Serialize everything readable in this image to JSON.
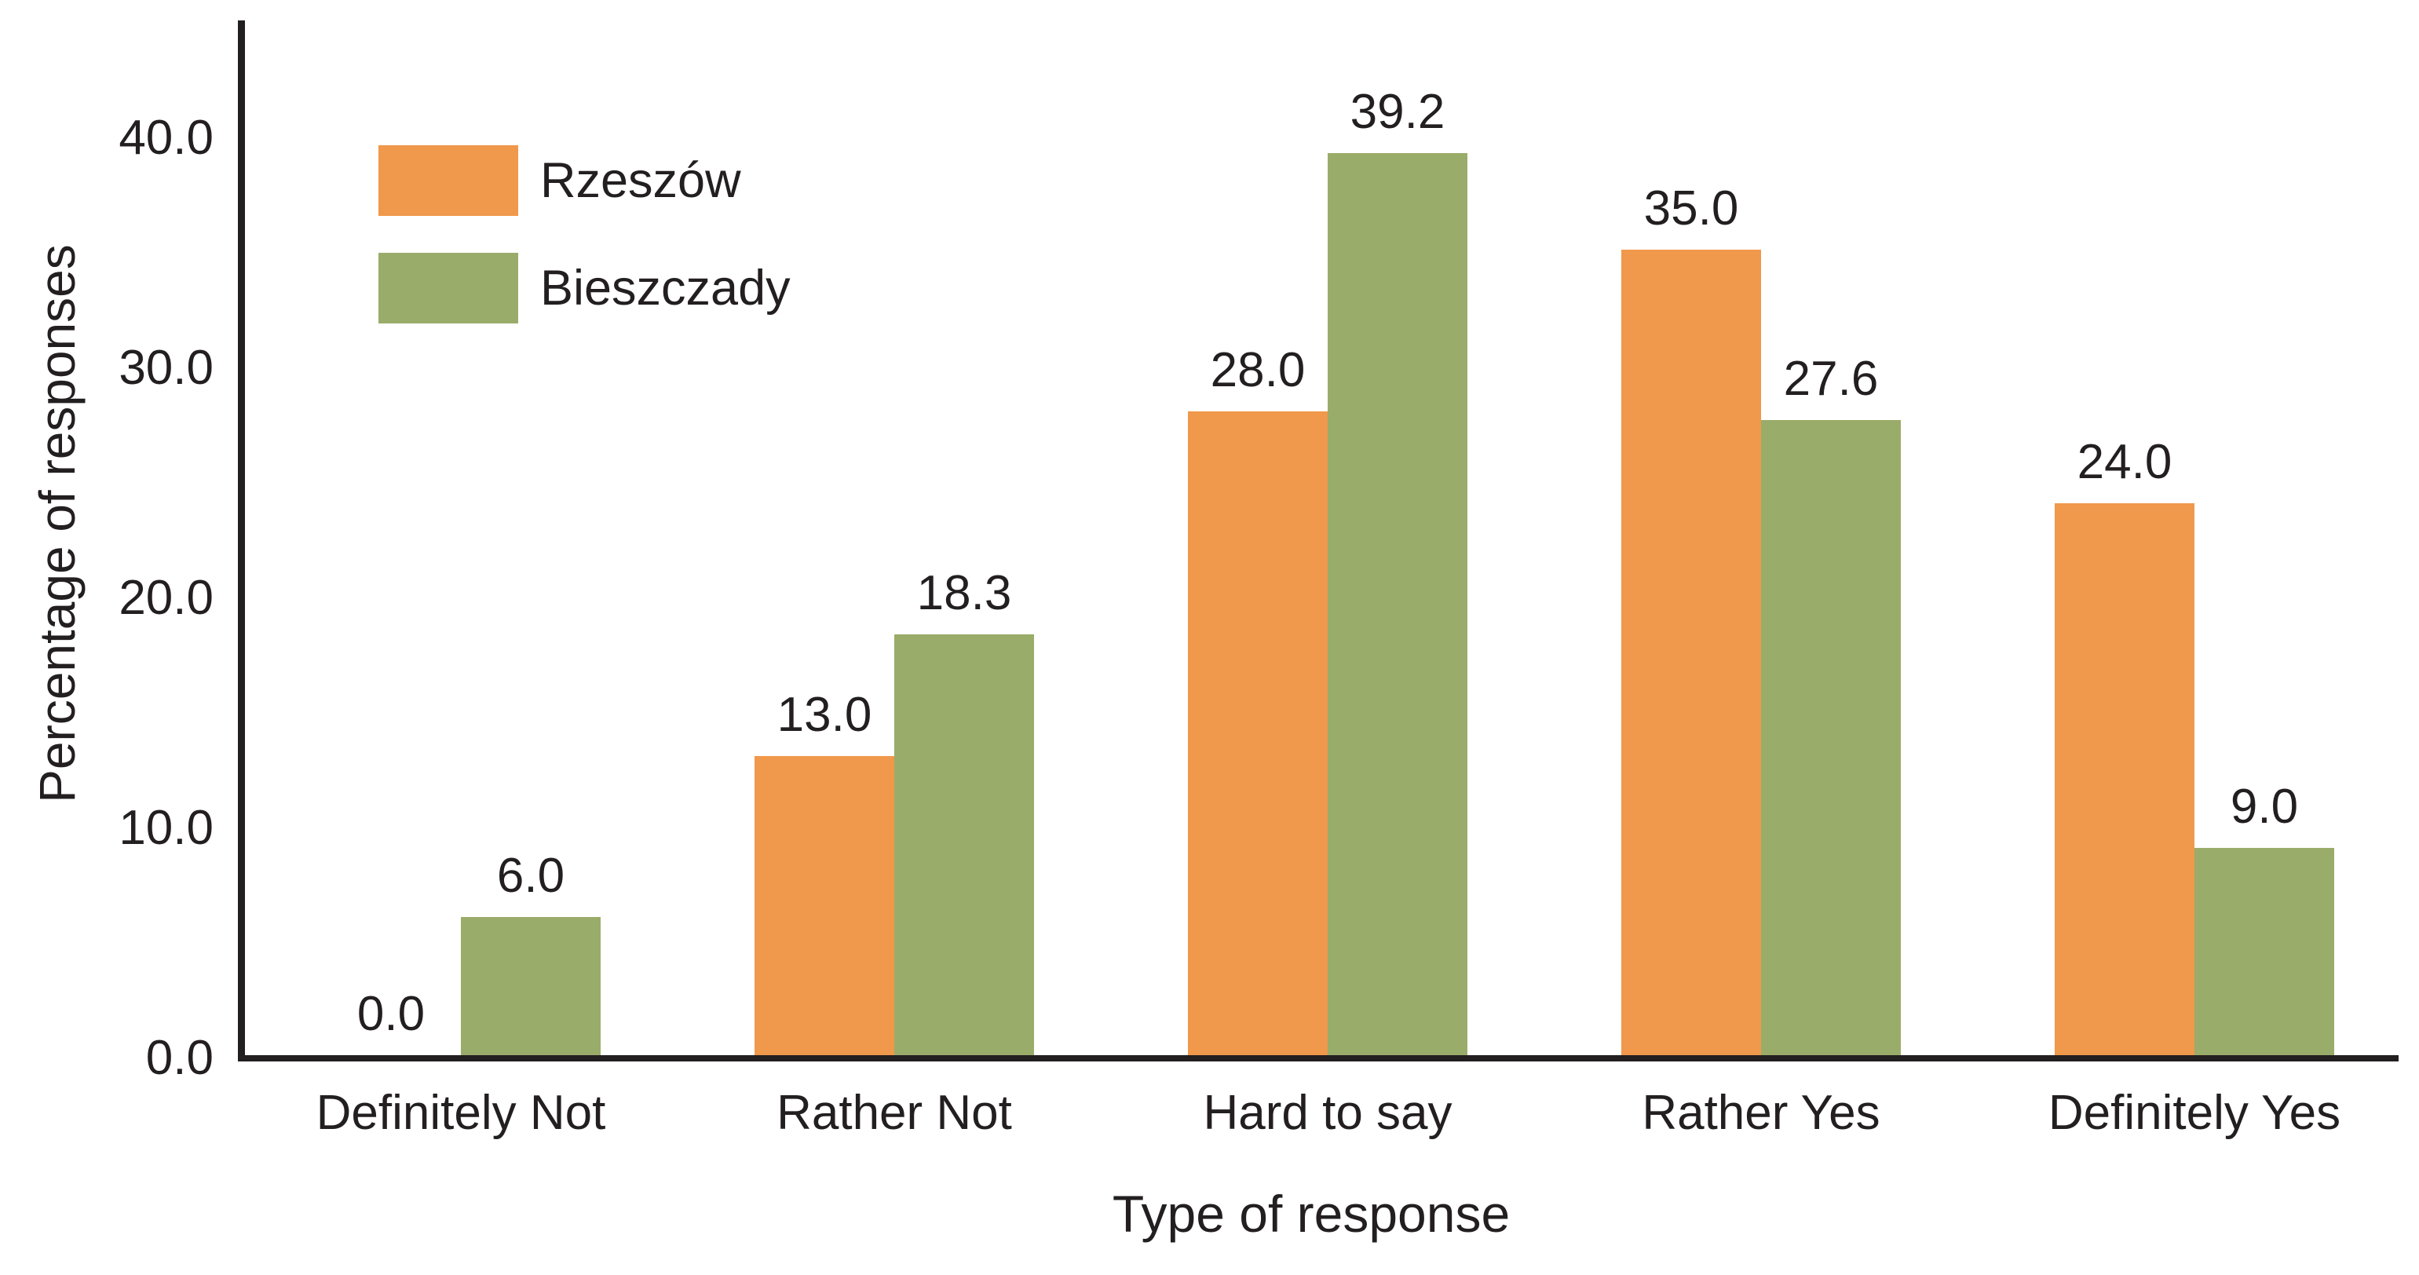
{
  "chart_data": {
    "type": "bar",
    "title": "",
    "xlabel": "Type of response",
    "ylabel": "Percentage of responses",
    "categories": [
      "Definitely Not",
      "Rather Not",
      "Hard to say",
      "Rather Yes",
      "Definitely Yes"
    ],
    "series": [
      {
        "name": "Rzeszów",
        "color": "#F0984B",
        "values": [
          0.0,
          13.0,
          28.0,
          35.0,
          24.0
        ]
      },
      {
        "name": "Bieszczady",
        "color": "#9AAC69",
        "values": [
          6.0,
          18.3,
          39.2,
          27.6,
          9.0
        ]
      }
    ],
    "value_labels": [
      "0.0",
      "13.0",
      "28.0",
      "35.0",
      "24.0",
      "6.0",
      "18.3",
      "39.2",
      "27.6",
      "9.0"
    ],
    "y_ticks": [
      {
        "value": 0,
        "label": "0.0"
      },
      {
        "value": 10,
        "label": "10.0"
      },
      {
        "value": 20,
        "label": "20.0"
      },
      {
        "value": 30,
        "label": "30.0"
      },
      {
        "value": 40,
        "label": "40.0"
      }
    ],
    "ylim": [
      0,
      45
    ],
    "grid": false,
    "legend_position": "top-left",
    "show_value_labels": true,
    "axis_color": "#231F20",
    "text_color": "#231F20",
    "background": "#FFFFFF"
  }
}
